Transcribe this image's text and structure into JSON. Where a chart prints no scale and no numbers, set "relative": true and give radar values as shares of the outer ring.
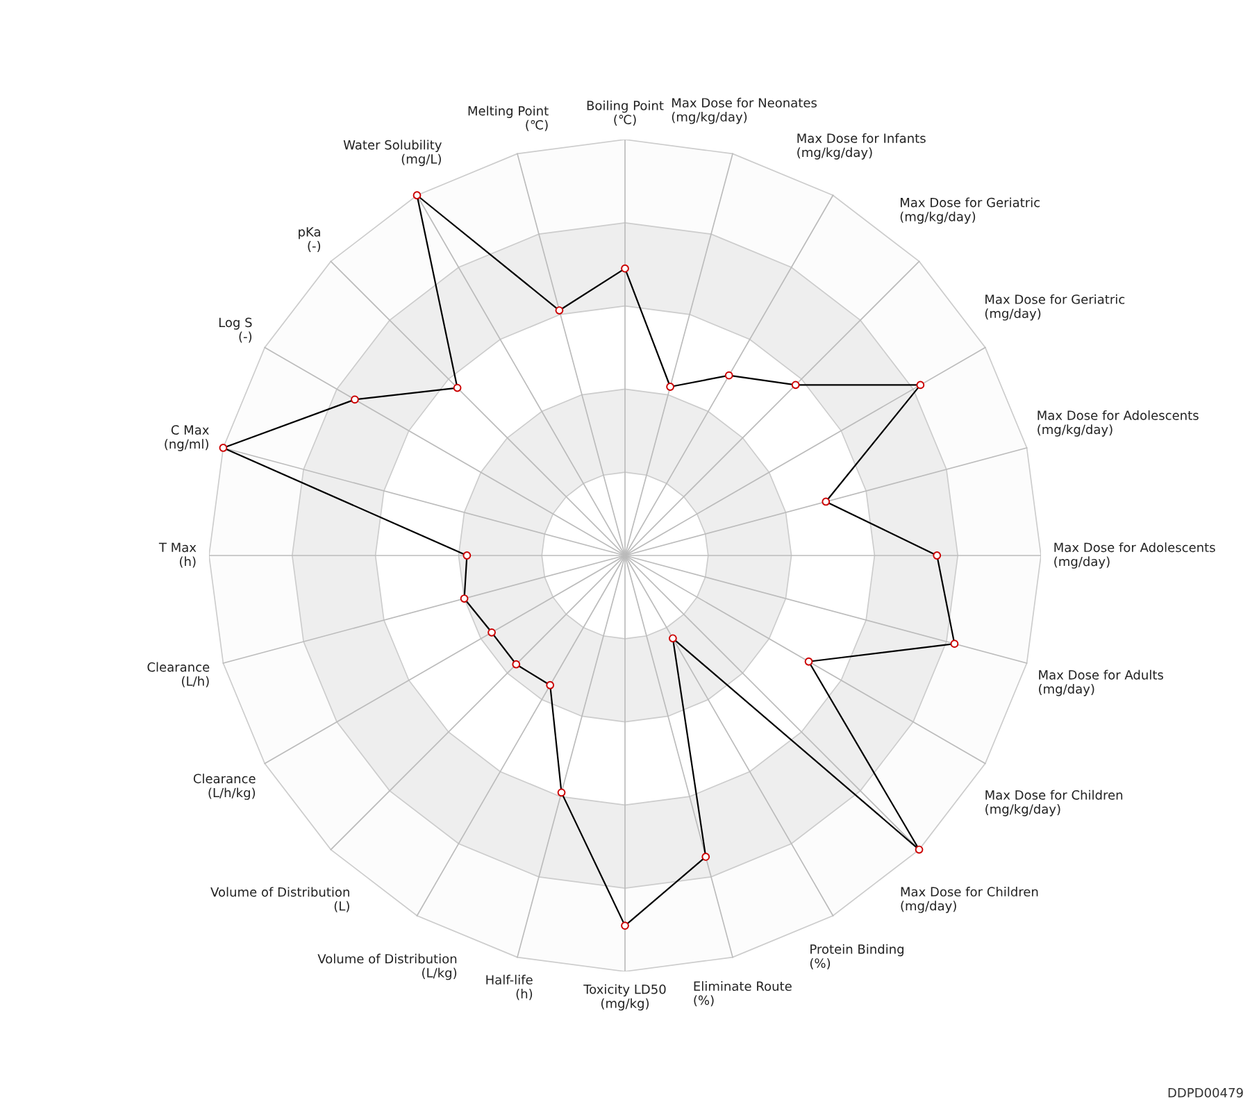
{
  "chart_data": {
    "type": "radar",
    "relative": true,
    "grid": true,
    "marker": "circle",
    "line_style": "solid",
    "categories": [
      "Boiling Point\n(℃)",
      "Max Dose for Neonates\n(mg/kg/day)",
      "Max Dose for Infants\n(mg/kg/day)",
      "Max Dose for Geriatric\n(mg/kg/day)",
      "Max Dose for Geriatric\n(mg/day)",
      "Max Dose for Adolescents\n(mg/kg/day)",
      "Max Dose for Adolescents\n(mg/day)",
      "Max Dose for Adults\n(mg/day)",
      "Max Dose for Children\n(mg/kg/day)",
      "Max Dose for Children\n(mg/day)",
      "Protein Binding\n(%)",
      "Eliminate Route\n(%)",
      "Toxicity LD50\n(mg/kg)",
      "Half-life\n(h)",
      "Volume of Distribution\n(L/kg)",
      "Volume of Distribution\n(L)",
      "Clearance\n(L/h/kg)",
      "Clearance\n(L/h)",
      "T Max\n(h)",
      "C Max\n(ng/ml)",
      "Log S\n(-)",
      "pKa\n(-)",
      "Water Solubility\n(mg/L)",
      "Melting Point\n(℃)"
    ],
    "series": [
      {
        "color": "#000000",
        "values": [
          0.69,
          0.42,
          0.5,
          0.58,
          0.82,
          0.5,
          0.75,
          0.82,
          0.51,
          1.0,
          0.23,
          0.75,
          0.89,
          0.59,
          0.36,
          0.37,
          0.37,
          0.4,
          0.38,
          1.0,
          0.75,
          0.57,
          1.0,
          0.61
        ]
      }
    ],
    "annotations": [
      "DDPD00479"
    ]
  }
}
